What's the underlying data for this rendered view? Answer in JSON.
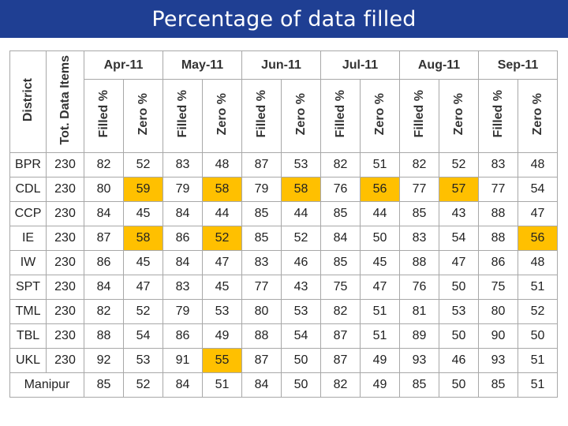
{
  "title": "Percentage of data filled",
  "header": {
    "district": "District",
    "total": "Tot. Data Items",
    "filled": "Filled %",
    "zero": "Zero %"
  },
  "months": [
    "Apr-11",
    "May-11",
    "Jun-11",
    "Jul-11",
    "Aug-11",
    "Sep-11"
  ],
  "highlight_color": "#ffc000",
  "filled_color": "#1f6fb5",
  "rows": [
    {
      "district": "BPR",
      "total": "230",
      "values": [
        "82",
        "52",
        "83",
        "48",
        "87",
        "53",
        "82",
        "51",
        "82",
        "52",
        "83",
        "48"
      ],
      "highlight": []
    },
    {
      "district": "CDL",
      "total": "230",
      "values": [
        "80",
        "59",
        "79",
        "58",
        "79",
        "58",
        "76",
        "56",
        "77",
        "57",
        "77",
        "54"
      ],
      "highlight": [
        1,
        3,
        5,
        7,
        9
      ]
    },
    {
      "district": "CCP",
      "total": "230",
      "values": [
        "84",
        "45",
        "84",
        "44",
        "85",
        "44",
        "85",
        "44",
        "85",
        "43",
        "88",
        "47"
      ],
      "highlight": []
    },
    {
      "district": "IE",
      "total": "230",
      "values": [
        "87",
        "58",
        "86",
        "52",
        "85",
        "52",
        "84",
        "50",
        "83",
        "54",
        "88",
        "56"
      ],
      "highlight": [
        1,
        3,
        11
      ]
    },
    {
      "district": "IW",
      "total": "230",
      "values": [
        "86",
        "45",
        "84",
        "47",
        "83",
        "46",
        "85",
        "45",
        "88",
        "47",
        "86",
        "48"
      ],
      "highlight": []
    },
    {
      "district": "SPT",
      "total": "230",
      "values": [
        "84",
        "47",
        "83",
        "45",
        "77",
        "43",
        "75",
        "47",
        "76",
        "50",
        "75",
        "51"
      ],
      "highlight": []
    },
    {
      "district": "TML",
      "total": "230",
      "values": [
        "82",
        "52",
        "79",
        "53",
        "80",
        "53",
        "82",
        "51",
        "81",
        "53",
        "80",
        "52"
      ],
      "highlight": []
    },
    {
      "district": "TBL",
      "total": "230",
      "values": [
        "88",
        "54",
        "86",
        "49",
        "88",
        "54",
        "87",
        "51",
        "89",
        "50",
        "90",
        "50"
      ],
      "highlight": []
    },
    {
      "district": "UKL",
      "total": "230",
      "values": [
        "92",
        "53",
        "91",
        "55",
        "87",
        "50",
        "87",
        "49",
        "93",
        "46",
        "93",
        "51"
      ],
      "highlight": [
        3
      ]
    },
    {
      "district": "Manipur",
      "total": "",
      "values": [
        "85",
        "52",
        "84",
        "51",
        "84",
        "50",
        "82",
        "49",
        "85",
        "50",
        "85",
        "51"
      ],
      "highlight": []
    }
  ]
}
